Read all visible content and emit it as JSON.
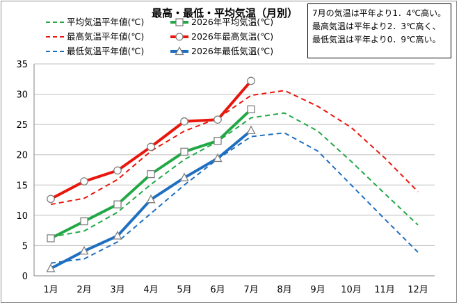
{
  "chart_data": {
    "type": "line",
    "title": "最高・最低・平均気温（月別）",
    "categories": [
      "1月",
      "2月",
      "3月",
      "4月",
      "5月",
      "6月",
      "7月",
      "8月",
      "9月",
      "10月",
      "11月",
      "12月"
    ],
    "ylim": [
      0,
      35
    ],
    "yticks": [
      0,
      5,
      10,
      15,
      20,
      25,
      30,
      35
    ],
    "grid": true,
    "legend_position": "top-left",
    "series": [
      {
        "name": "平均気温平年値(℃)",
        "style": "dashed",
        "color": "#21a845",
        "marker": "none",
        "values": [
          6.4,
          7.4,
          10.5,
          15.1,
          19.2,
          22.2,
          26.1,
          26.9,
          23.9,
          18.9,
          13.6,
          8.4
        ]
      },
      {
        "name": "2026年平均気温(℃)",
        "style": "solid",
        "color": "#21a845",
        "marker": "square",
        "values": [
          6.2,
          9.0,
          11.8,
          16.8,
          20.5,
          22.3,
          27.5,
          null,
          null,
          null,
          null,
          null
        ]
      },
      {
        "name": "最高気温平年値(℃)",
        "style": "dashed",
        "color": "#e8160c",
        "marker": "none",
        "values": [
          11.8,
          12.8,
          15.9,
          20.6,
          23.9,
          26.0,
          29.8,
          30.6,
          28.0,
          24.5,
          19.5,
          13.9
        ]
      },
      {
        "name": "2026年最高気温(℃)",
        "style": "solid",
        "color": "#e8160c",
        "marker": "circle",
        "values": [
          12.7,
          15.6,
          17.4,
          21.3,
          25.5,
          25.8,
          32.2,
          null,
          null,
          null,
          null,
          null
        ]
      },
      {
        "name": "最低気温平年値(℃)",
        "style": "dashed",
        "color": "#1f6fc0",
        "marker": "none",
        "values": [
          2.1,
          2.8,
          5.6,
          10.3,
          15.0,
          19.3,
          23.0,
          23.6,
          20.6,
          15.0,
          9.4,
          3.9
        ]
      },
      {
        "name": "2026年最低気温(℃)",
        "style": "solid",
        "color": "#1f6fc0",
        "marker": "triangle",
        "values": [
          1.2,
          4.1,
          6.6,
          12.6,
          16.2,
          19.4,
          24.0,
          null,
          null,
          null,
          null,
          null
        ]
      }
    ]
  },
  "note": {
    "line1": "7月の気温は平年より1．4℃高い。",
    "line2": "最高気温は平年より2．3℃高く、",
    "line3": "最低気温は平年より0．9℃高い。"
  }
}
